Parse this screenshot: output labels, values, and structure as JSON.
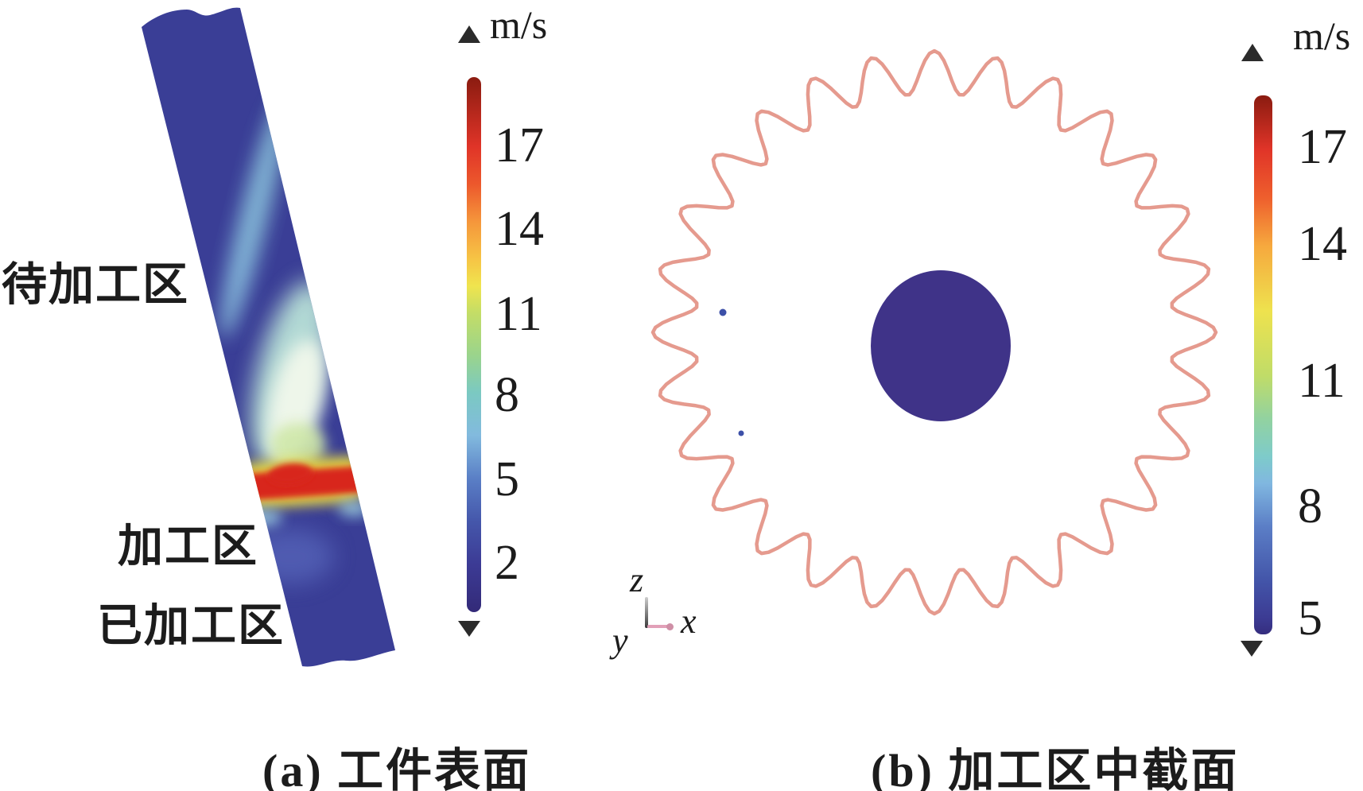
{
  "figure": {
    "panel_a": {
      "caption": "(a) 工件表面",
      "labels": {
        "upper": "待加工区",
        "middle": "加工区",
        "lower": "已加工区"
      },
      "colorbar": {
        "unit": "m/s",
        "ticks": [
          "17",
          "14",
          "11",
          "8",
          "5",
          "2"
        ]
      }
    },
    "panel_b": {
      "caption": "(b) 加工区中截面",
      "axis_triad": {
        "x": "x",
        "y": "y",
        "z": "z"
      },
      "colorbar": {
        "unit": "m/s",
        "ticks": [
          "17",
          "14",
          "11",
          "8",
          "5"
        ]
      }
    }
  },
  "chart_data": [
    {
      "type": "heatmap",
      "title": "(a) 工件表面",
      "value_kind": "velocity magnitude",
      "unit": "m/s",
      "colorbar": {
        "orientation": "vertical",
        "ticks": [
          17,
          14,
          11,
          8,
          5,
          2
        ],
        "top_is_max": true
      },
      "annotations": [
        "待加工区",
        "加工区",
        "已加工区"
      ],
      "features": [
        "tilted elongated workpiece rendered mostly dark indigo (~2 m/s)",
        "light-blue to pale-green streak widening toward machining zone (~5-11 m/s)",
        "horizontal red band with yellow fringes at machining zone (~17 m/s)",
        "machined zone below band returns to dark indigo"
      ]
    },
    {
      "type": "heatmap",
      "title": "(b) 加工区中截面",
      "value_kind": "velocity magnitude",
      "unit": "m/s",
      "colorbar": {
        "orientation": "vertical",
        "ticks": [
          17,
          14,
          11,
          8,
          5
        ],
        "top_is_max": true
      },
      "axes_triad": [
        "z",
        "y",
        "x"
      ],
      "features": [
        "gear-like wavy circular outline (about 28 teeth) drawn in salmon/red (high velocity ~15-17 m/s)",
        "solid dark indigo hub circle at center (low velocity ~5 m/s)",
        "two small blue dots inside left half of the section"
      ]
    }
  ],
  "colors": {
    "text": "#1c1c1c",
    "arrow_dark": "#2b2b2b",
    "wp_base": "#3a3e96",
    "wp_shade": "#2e3078",
    "wp_streak": "#8ec8e2",
    "wp_cyan": "#b9e2d8",
    "wp_pale": "#eef6ea",
    "wp_green": "#cfe7a8",
    "band_yellow": "#f2e33c",
    "band_red": "#d8251c",
    "wp_below_glow": "#5c6cc0",
    "wp_fringe": "#9fd4e2",
    "gear_outline": "#e59a8e",
    "hub_indigo": "#3f3388",
    "dot_blue": "#3c50a8",
    "axis_x_pink": "#e2a0b8",
    "axis_x_dot": "#cf8fa6",
    "axis_z_dark": "#3a3a3a",
    "colorbar_a_stops": [
      "#8a1b10 0%",
      "#e03428 13%",
      "#ec582c 20%",
      "#f5963b 27%",
      "#f6c445 34%",
      "#f0e44e 39%",
      "#c4dd66 44%",
      "#9ad48c 52%",
      "#7bc9c2 59%",
      "#82bade 67%",
      "#5a7fc6 75%",
      "#4557ab 83%",
      "#3c3b95 91%",
      "#332a78 100%"
    ],
    "colorbar_b_stops": [
      "#8a1b10 0%",
      "#e03428 10%",
      "#ee5f2d 19%",
      "#f6a93e 28%",
      "#eee24e 40%",
      "#c0dc68 52%",
      "#92d2a0 60%",
      "#7ecbca 67%",
      "#80b7e0 72%",
      "#5b7ec6 80%",
      "#4355a9 90%",
      "#3c3b93 97%",
      "#352d7e 100%"
    ]
  }
}
